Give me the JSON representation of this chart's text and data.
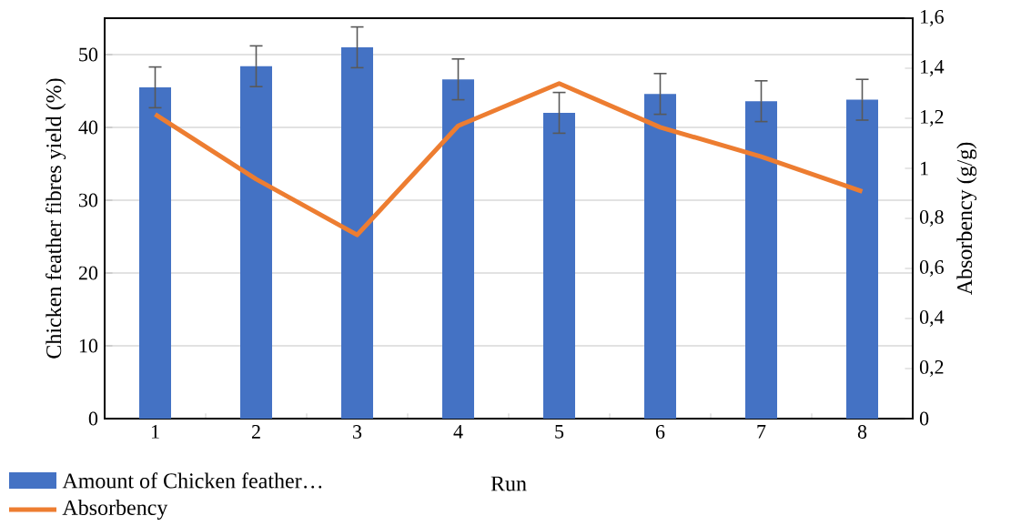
{
  "chart_data": {
    "type": "bar",
    "xlabel": "Run",
    "ylabel": "Chicken feather fibres yield (%)",
    "y2label": "Absorbency (g/g)",
    "categories": [
      "1",
      "2",
      "3",
      "4",
      "5",
      "6",
      "7",
      "8"
    ],
    "series": [
      {
        "name": "Amount of Chicken feather…",
        "color": "#4472c4",
        "values": [
          45.5,
          48.4,
          51.0,
          46.6,
          42.0,
          44.6,
          43.6,
          43.8
        ],
        "errors": [
          2.8,
          2.8,
          2.8,
          2.8,
          2.8,
          2.8,
          2.8,
          2.8
        ]
      },
      {
        "name": "Absorbency",
        "type": "line",
        "axis": "y2",
        "color": "#ed7d31",
        "values": [
          1.216,
          0.957,
          0.734,
          1.17,
          1.339,
          1.164,
          1.047,
          0.908
        ]
      }
    ],
    "ylim": [
      0,
      55
    ],
    "yticks": [
      0,
      10,
      20,
      30,
      40,
      50
    ],
    "y2lim": [
      0,
      1.6
    ],
    "y2ticks": [
      0,
      {
        "value": 0.2,
        "label": "0,2"
      },
      {
        "value": 0.4,
        "label": "0,4"
      },
      {
        "value": 0.6,
        "label": "0,6"
      },
      {
        "value": 0.8,
        "label": "0,8"
      },
      1,
      {
        "value": 1.2,
        "label": "1,2"
      },
      {
        "value": 1.4,
        "label": "1,4"
      },
      {
        "value": 1.6,
        "label": "1,6"
      }
    ],
    "grid": "y",
    "legend": "bottom left",
    "marker": "none",
    "line_style": "solid"
  }
}
